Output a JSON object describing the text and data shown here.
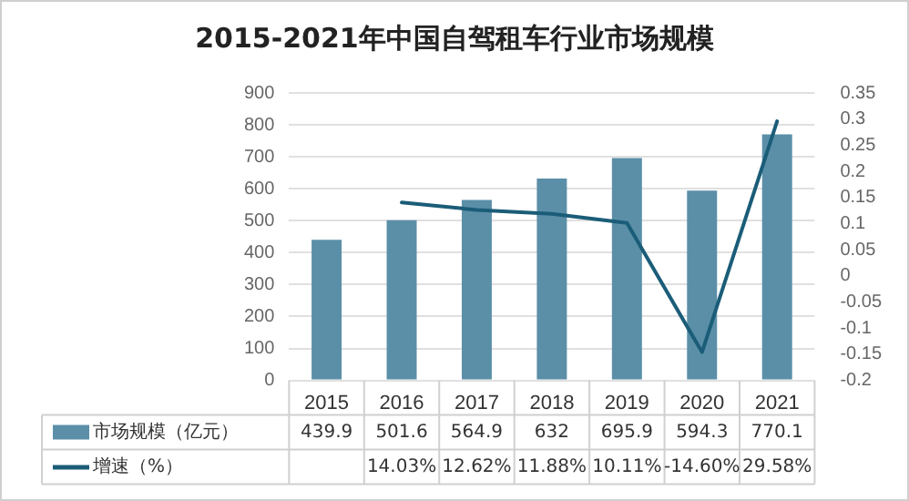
{
  "chart_data": {
    "type": "bar",
    "title": "2015-2021年中国自驾租车行业市场规模",
    "categories": [
      "2015",
      "2016",
      "2017",
      "2018",
      "2019",
      "2020",
      "2021"
    ],
    "series": [
      {
        "name": "市场规模（亿元）",
        "color": "#5b8fa8",
        "values": [
          439.9,
          501.6,
          564.9,
          632,
          695.9,
          594.3,
          770.1
        ],
        "value_labels": [
          "439.9",
          "501.6",
          "564.9",
          "632",
          "695.9",
          "594.3",
          "770.1"
        ]
      },
      {
        "name": "增速（%）",
        "type": "line",
        "axis": "y2",
        "color": "#1b5d78",
        "values": [
          null,
          0.1403,
          0.1262,
          0.1188,
          0.1011,
          -0.146,
          0.2958
        ],
        "value_labels": [
          null,
          "14.03%",
          "12.62%",
          "11.88%",
          "10.11%",
          "-14.60%",
          "29.58%"
        ]
      }
    ],
    "ylim": [
      0,
      900
    ],
    "yticks": [
      0,
      100,
      200,
      300,
      400,
      500,
      600,
      700,
      800,
      900
    ],
    "y2lim": [
      -0.2,
      0.35
    ],
    "y2ticks": [
      -0.2,
      -0.15,
      -0.1,
      -0.05,
      0,
      0.05,
      0.1,
      0.15,
      0.2,
      0.25,
      0.3,
      0.35
    ],
    "grid": "y",
    "legend": "bottom",
    "marker": "none",
    "line_style": "solid"
  }
}
